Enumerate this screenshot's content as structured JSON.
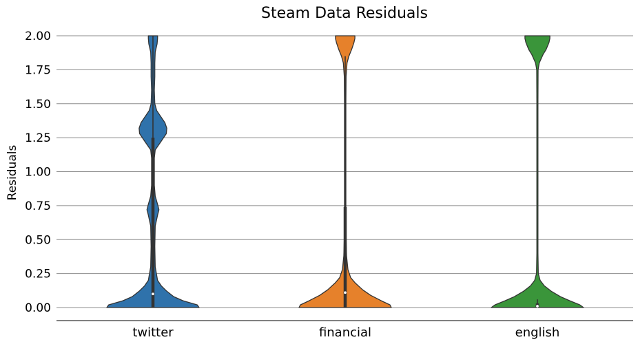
{
  "chart_data": {
    "type": "violin",
    "title": "Steam Data Residuals",
    "xlabel": "",
    "ylabel": "Residuals",
    "ylim": [
      0,
      2
    ],
    "yticks": [
      "0.00",
      "0.25",
      "0.50",
      "0.75",
      "1.00",
      "1.25",
      "1.50",
      "1.75",
      "2.00"
    ],
    "grid": "horizontal",
    "categories": [
      "twitter",
      "financial",
      "english"
    ],
    "colors": [
      "#2f72ab",
      "#e6812b",
      "#3a953a"
    ],
    "violins": [
      {
        "category": "twitter",
        "median": 0.1,
        "q1": 0.0,
        "q3": 1.25,
        "whisker_low": 0.0,
        "whisker_high": 2.0,
        "density": [
          [
            0.0,
            1.0
          ],
          [
            0.02,
            0.96
          ],
          [
            0.05,
            0.65
          ],
          [
            0.08,
            0.45
          ],
          [
            0.12,
            0.3
          ],
          [
            0.16,
            0.18
          ],
          [
            0.2,
            0.1
          ],
          [
            0.3,
            0.05
          ],
          [
            0.45,
            0.04
          ],
          [
            0.6,
            0.05
          ],
          [
            0.68,
            0.1
          ],
          [
            0.72,
            0.13
          ],
          [
            0.76,
            0.1
          ],
          [
            0.82,
            0.05
          ],
          [
            0.9,
            0.03
          ],
          [
            1.0,
            0.03
          ],
          [
            1.1,
            0.03
          ],
          [
            1.16,
            0.05
          ],
          [
            1.22,
            0.17
          ],
          [
            1.28,
            0.29
          ],
          [
            1.32,
            0.3
          ],
          [
            1.36,
            0.26
          ],
          [
            1.41,
            0.16
          ],
          [
            1.45,
            0.08
          ],
          [
            1.5,
            0.04
          ],
          [
            1.6,
            0.03
          ],
          [
            1.7,
            0.04
          ],
          [
            1.8,
            0.04
          ],
          [
            1.88,
            0.05
          ],
          [
            1.94,
            0.09
          ],
          [
            1.98,
            0.1
          ],
          [
            2.0,
            0.1
          ]
        ]
      },
      {
        "category": "financial",
        "median": 0.11,
        "q1": 0.0,
        "q3": 0.74,
        "whisker_low": 0.0,
        "whisker_high": 1.85,
        "density": [
          [
            0.0,
            1.0
          ],
          [
            0.02,
            0.97
          ],
          [
            0.05,
            0.78
          ],
          [
            0.09,
            0.55
          ],
          [
            0.13,
            0.38
          ],
          [
            0.18,
            0.22
          ],
          [
            0.22,
            0.12
          ],
          [
            0.28,
            0.06
          ],
          [
            0.38,
            0.03
          ],
          [
            0.5,
            0.02
          ],
          [
            0.75,
            0.015
          ],
          [
            1.0,
            0.015
          ],
          [
            1.25,
            0.015
          ],
          [
            1.5,
            0.015
          ],
          [
            1.7,
            0.02
          ],
          [
            1.8,
            0.04
          ],
          [
            1.85,
            0.08
          ],
          [
            1.9,
            0.14
          ],
          [
            1.95,
            0.19
          ],
          [
            1.98,
            0.21
          ],
          [
            2.0,
            0.21
          ]
        ]
      },
      {
        "category": "english",
        "median": 0.01,
        "q1": 0.0,
        "q3": 0.03,
        "whisker_low": 0.0,
        "whisker_high": 0.06,
        "density": [
          [
            0.0,
            1.0
          ],
          [
            0.02,
            0.92
          ],
          [
            0.05,
            0.7
          ],
          [
            0.08,
            0.5
          ],
          [
            0.12,
            0.3
          ],
          [
            0.16,
            0.15
          ],
          [
            0.2,
            0.06
          ],
          [
            0.25,
            0.02
          ],
          [
            0.4,
            0.012
          ],
          [
            0.75,
            0.012
          ],
          [
            1.0,
            0.012
          ],
          [
            1.25,
            0.012
          ],
          [
            1.5,
            0.012
          ],
          [
            1.75,
            0.015
          ],
          [
            1.8,
            0.04
          ],
          [
            1.86,
            0.12
          ],
          [
            1.9,
            0.19
          ],
          [
            1.95,
            0.25
          ],
          [
            1.98,
            0.27
          ],
          [
            2.0,
            0.27
          ]
        ]
      }
    ]
  }
}
